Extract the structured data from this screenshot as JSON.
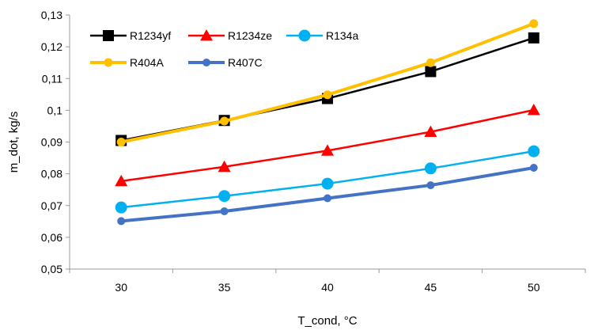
{
  "chart_data": {
    "type": "line",
    "categories": [
      "30",
      "35",
      "40",
      "45",
      "50"
    ],
    "xlabel": "T_cond, °C",
    "ylabel": "m_dot, kg/s",
    "ylim": [
      0.05,
      0.13
    ],
    "ytick_labels": [
      "0,05",
      "0,06",
      "0,07",
      "0,08",
      "0,09",
      "0,1",
      "0,11",
      "0,12",
      "0,13"
    ],
    "grid": false,
    "legend_position": "top-left",
    "series": [
      {
        "name": "R1234yf",
        "color": "#000000",
        "marker": "square",
        "values": [
          0.0905,
          0.0968,
          0.1037,
          0.1122,
          0.1228
        ]
      },
      {
        "name": "R1234ze",
        "color": "#ff0000",
        "marker": "triangle",
        "values": [
          0.0777,
          0.0822,
          0.0873,
          0.0932,
          0.1001
        ]
      },
      {
        "name": "R134a",
        "color": "#00b0f0",
        "marker": "circle",
        "values": [
          0.0694,
          0.073,
          0.0769,
          0.0817,
          0.0871
        ]
      },
      {
        "name": "R404A",
        "color": "#ffc000",
        "marker": "circle",
        "values": [
          0.09,
          0.0966,
          0.1049,
          0.115,
          0.1273
        ]
      },
      {
        "name": "R407C",
        "color": "#4472c4",
        "marker": "circle",
        "values": [
          0.0651,
          0.0682,
          0.0723,
          0.0764,
          0.0819
        ]
      }
    ]
  }
}
